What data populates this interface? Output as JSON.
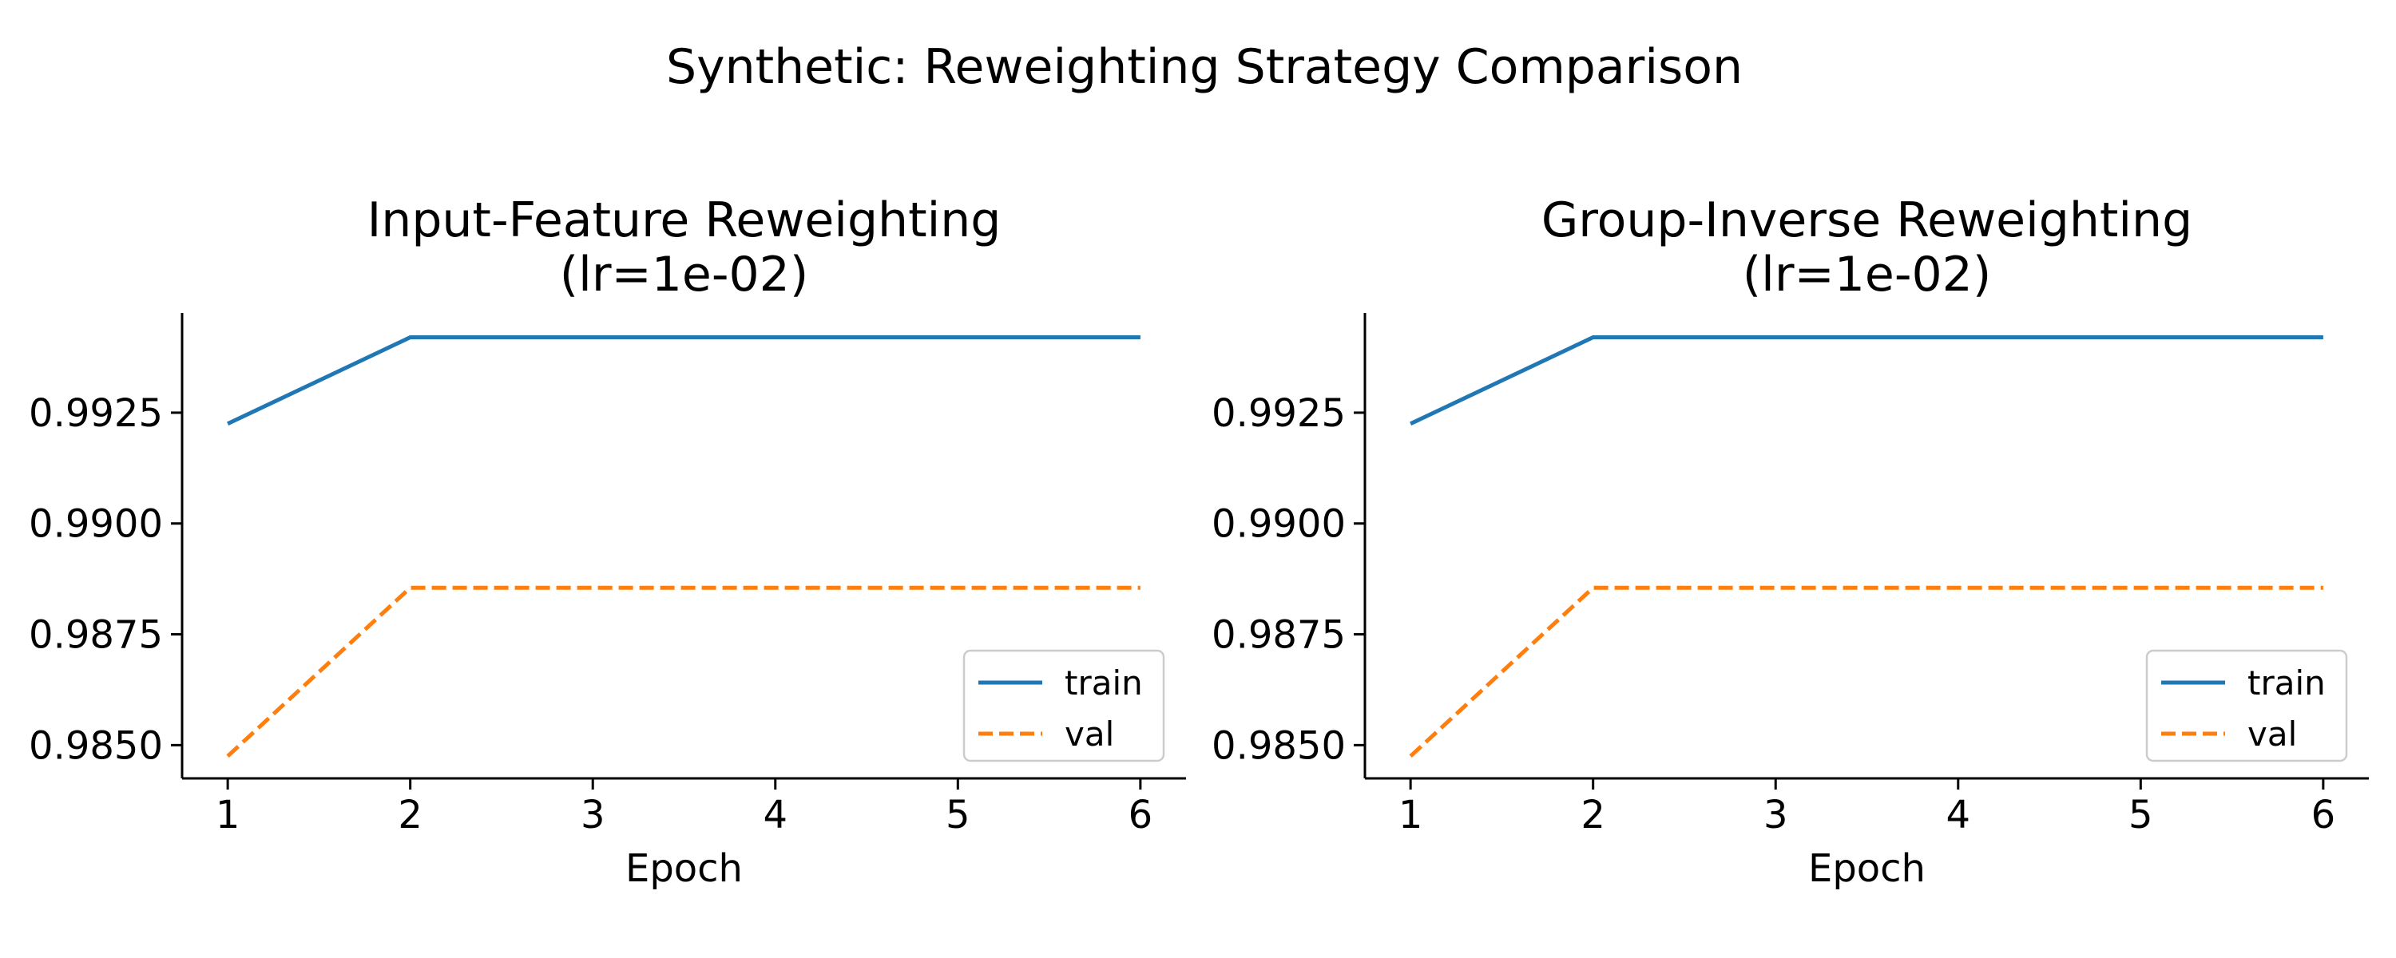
{
  "figure": {
    "suptitle": "Synthetic: Reweighting Strategy Comparison"
  },
  "colors": {
    "train": "#1f77b4",
    "val": "#ff7f0e",
    "axis": "#000000",
    "legend_border": "#cccccc"
  },
  "chart_data": [
    {
      "type": "line",
      "title_line1": "Input-Feature Reweighting",
      "title_line2": "(lr=1e-02)",
      "xlabel": "Epoch",
      "ylabel": "",
      "x": [
        1,
        2,
        3,
        4,
        5,
        6
      ],
      "xticks": [
        "1",
        "2",
        "3",
        "4",
        "5",
        "6"
      ],
      "yticks": [
        "0.9850",
        "0.9875",
        "0.9900",
        "0.9925"
      ],
      "ytick_values": [
        0.985,
        0.9875,
        0.99,
        0.9925
      ],
      "xlim": [
        0.75,
        6.25
      ],
      "ylim": [
        0.98425,
        0.99475
      ],
      "grid": false,
      "legend": "lower-right",
      "series": [
        {
          "name": "train",
          "style": "solid",
          "values": [
            0.99225,
            0.9942,
            0.9942,
            0.9942,
            0.9942,
            0.9942
          ]
        },
        {
          "name": "val",
          "style": "dashed",
          "values": [
            0.98475,
            0.98855,
            0.98855,
            0.98855,
            0.98855,
            0.98855
          ]
        }
      ]
    },
    {
      "type": "line",
      "title_line1": "Group-Inverse Reweighting",
      "title_line2": "(lr=1e-02)",
      "xlabel": "Epoch",
      "ylabel": "",
      "x": [
        1,
        2,
        3,
        4,
        5,
        6
      ],
      "xticks": [
        "1",
        "2",
        "3",
        "4",
        "5",
        "6"
      ],
      "yticks": [
        "0.9850",
        "0.9875",
        "0.9900",
        "0.9925"
      ],
      "ytick_values": [
        0.985,
        0.9875,
        0.99,
        0.9925
      ],
      "xlim": [
        0.75,
        6.25
      ],
      "ylim": [
        0.98425,
        0.99475
      ],
      "grid": false,
      "legend": "lower-right",
      "series": [
        {
          "name": "train",
          "style": "solid",
          "values": [
            0.99225,
            0.9942,
            0.9942,
            0.9942,
            0.9942,
            0.9942
          ]
        },
        {
          "name": "val",
          "style": "dashed",
          "values": [
            0.98475,
            0.98855,
            0.98855,
            0.98855,
            0.98855,
            0.98855
          ]
        }
      ]
    }
  ]
}
